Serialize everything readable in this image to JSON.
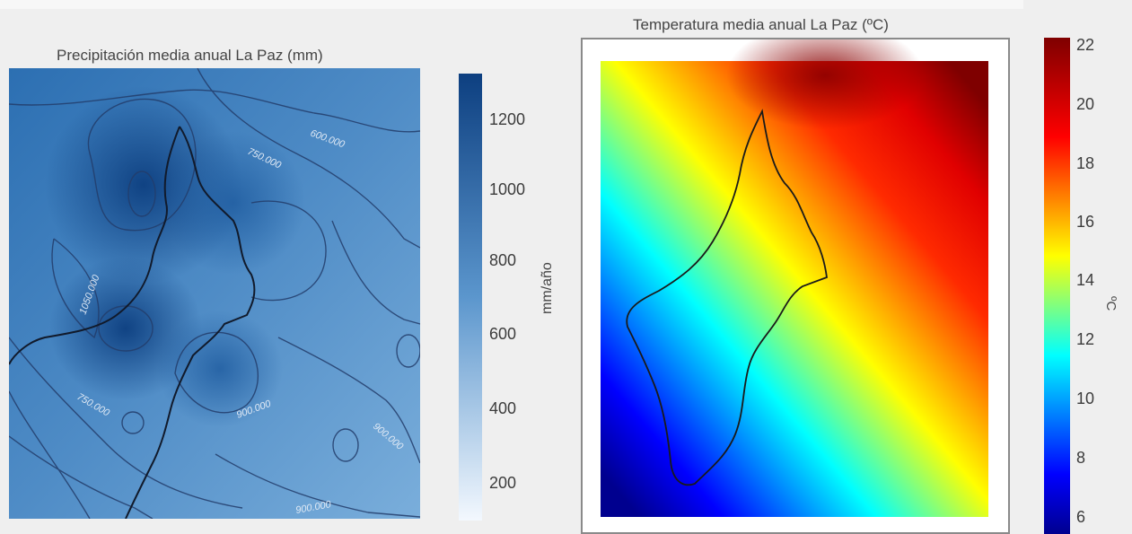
{
  "precip_map": {
    "title": "Precipitación media anual La Paz  (mm)",
    "colorbar": {
      "label": "mm/año",
      "ticks": [
        "1200",
        "1000",
        "800",
        "600",
        "400",
        "200"
      ],
      "colors": [
        "#f3f8fe",
        "#2b6bb0",
        "#0d3f80"
      ]
    },
    "contour_labels": [
      "600.000",
      "750.000",
      "1050.000",
      "750.000",
      "900.000",
      "900.000",
      "900.000"
    ]
  },
  "temp_map": {
    "title": "Temperatura media anual La Paz  (ºC)",
    "colorbar": {
      "label": "ºC",
      "ticks": [
        "22",
        "20",
        "18",
        "16",
        "14",
        "12",
        "10",
        "8",
        "6"
      ],
      "colors": [
        "#00008f",
        "#0000ff",
        "#00ffff",
        "#ffff00",
        "#ff0000",
        "#7f0000"
      ]
    }
  }
}
